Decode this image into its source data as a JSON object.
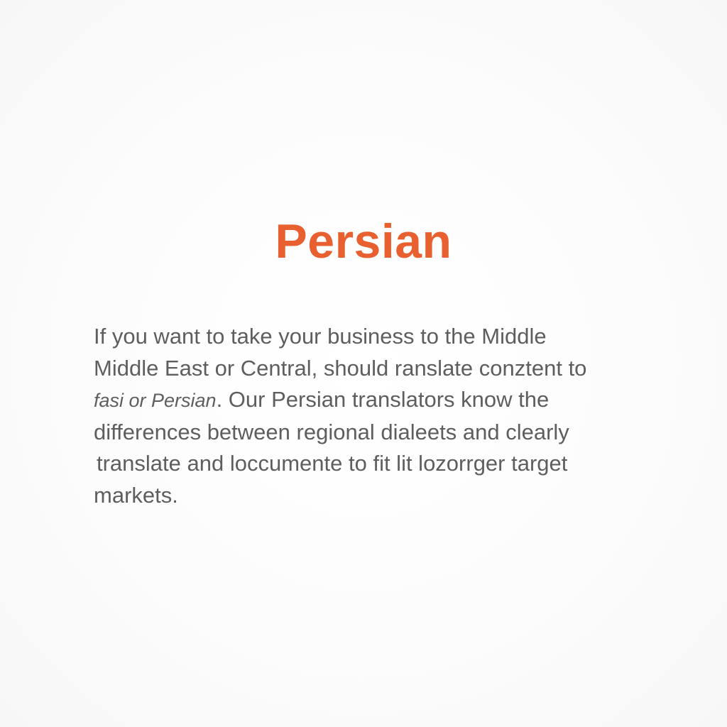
{
  "heading": "Persian",
  "colors": {
    "heading": "#e8602f",
    "body_text": "#5e5e5e",
    "background": "#fdfdfd"
  },
  "paragraph": {
    "line1": "If you want to take your business to the Middle",
    "line2": "Middle East or Central, should ranslate conztent to",
    "line3_italic": "fasi or Persian",
    "line3_rest": ". Our Persian translators know the",
    "line4": "differences between regional dialeets and clearly",
    "line5": "translate and loccumente to fit lit lozorrger target",
    "line6": "markets."
  }
}
